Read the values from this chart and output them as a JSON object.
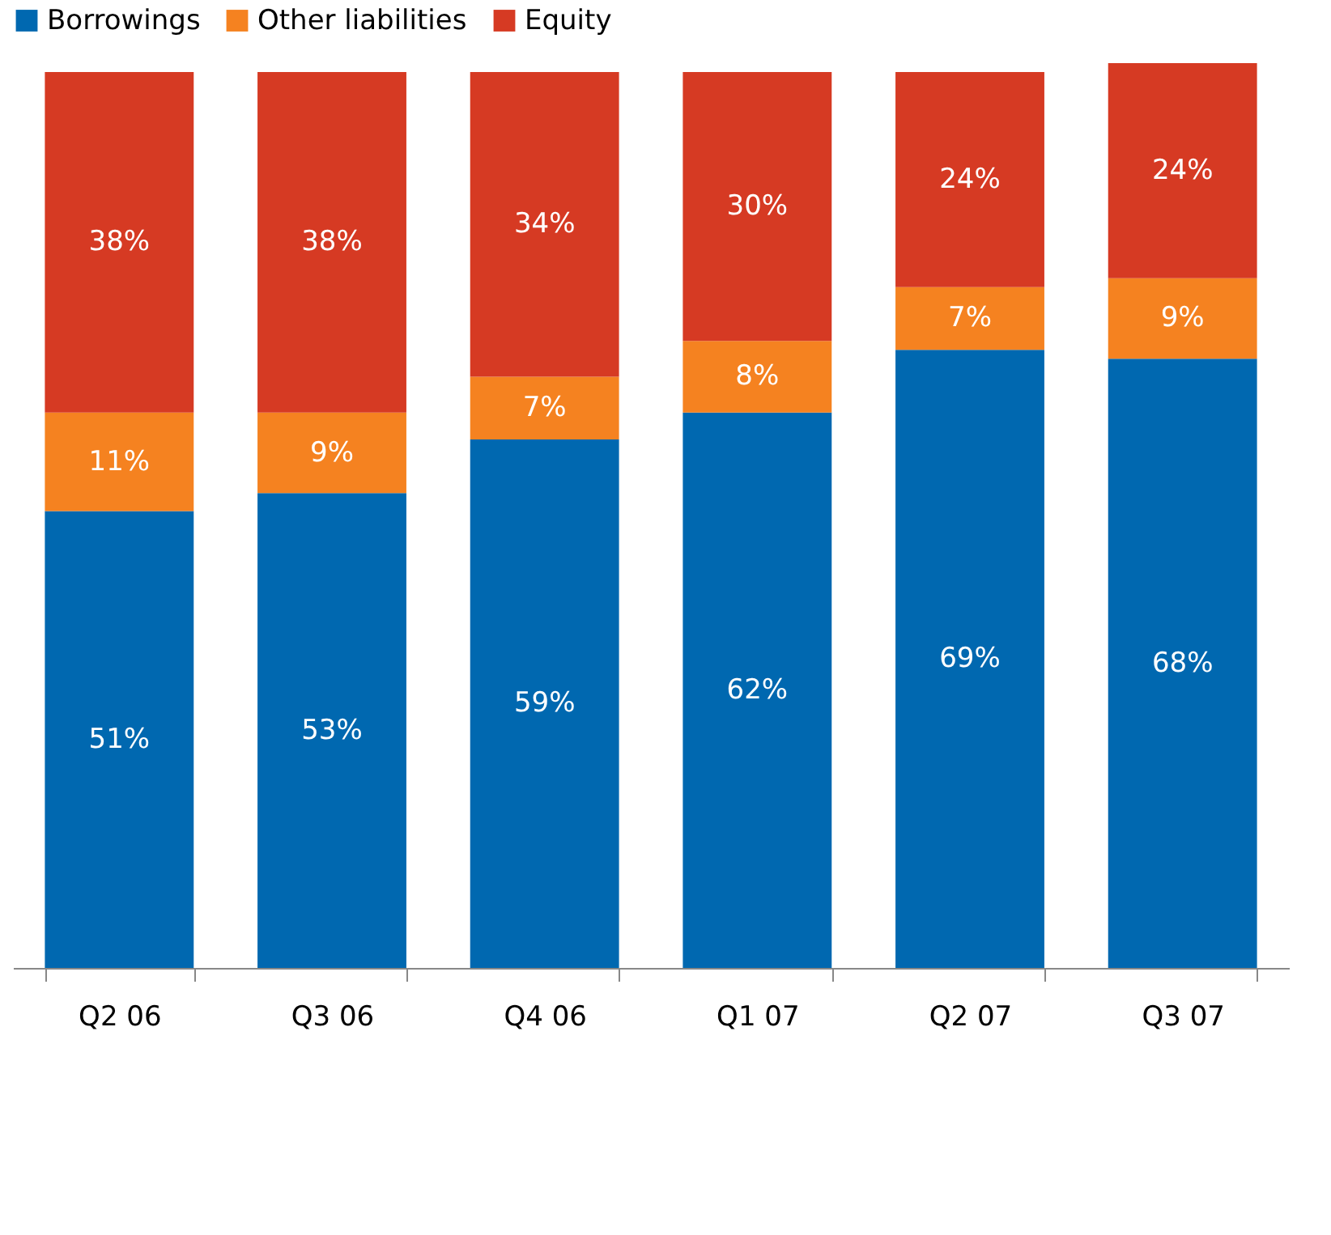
{
  "chart_data": {
    "type": "bar",
    "stacked": true,
    "legend": "top",
    "tick_labels": "x",
    "categories": [
      "Q2 06",
      "Q3 06",
      "Q4 06",
      "Q1 07",
      "Q2 07",
      "Q3 07"
    ],
    "series": [
      {
        "name": "Borrowings",
        "color": "#0068b0",
        "values": [
          51,
          53,
          59,
          62,
          69,
          68
        ],
        "value_labels": [
          "51%",
          "53%",
          "59%",
          "62%",
          "69%",
          "68%"
        ]
      },
      {
        "name": "Other liabilities",
        "color": "#f58220",
        "values": [
          11,
          9,
          7,
          8,
          7,
          9
        ],
        "value_labels": [
          "11%",
          "9%",
          "7%",
          "8%",
          "7%",
          "9%"
        ]
      },
      {
        "name": "Equity",
        "color": "#d63a23",
        "values": [
          38,
          38,
          34,
          30,
          24,
          24
        ],
        "value_labels": [
          "38%",
          "38%",
          "34%",
          "30%",
          "24%",
          "24%"
        ]
      }
    ]
  }
}
